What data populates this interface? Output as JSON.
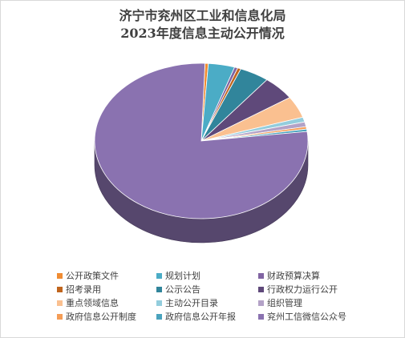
{
  "chart_data": {
    "type": "pie",
    "title_line1": "济宁市兖州区工业和信息化局",
    "title_line2": "2023年度信息主动公开情况",
    "legend_position": "bottom",
    "slices": [
      {
        "name": "公开政策文件",
        "value": 0.5,
        "color": "#f08c32"
      },
      {
        "name": "规划计划",
        "value": 4.0,
        "color": "#4bacc6"
      },
      {
        "name": "财政预算决算",
        "value": 0.5,
        "color": "#8064a2"
      },
      {
        "name": "招考录用",
        "value": 0.5,
        "color": "#c0651d"
      },
      {
        "name": "公示公告",
        "value": 4.5,
        "color": "#31859b"
      },
      {
        "name": "行政权力运行公开",
        "value": 5.0,
        "color": "#5f497a"
      },
      {
        "name": "重点领域信息",
        "value": 4.5,
        "color": "#fac090"
      },
      {
        "name": "主动公开目录",
        "value": 1.0,
        "color": "#93cddd"
      },
      {
        "name": "组织管理",
        "value": 1.0,
        "color": "#b3a2c7"
      },
      {
        "name": "政府信息公开制度",
        "value": 0.5,
        "color": "#f59d56"
      },
      {
        "name": "政府信息公开年报",
        "value": 0.5,
        "color": "#4aa3bd"
      },
      {
        "name": "兖州工信微信公众号",
        "value": 77.5,
        "color": "#8a72b0"
      }
    ]
  }
}
